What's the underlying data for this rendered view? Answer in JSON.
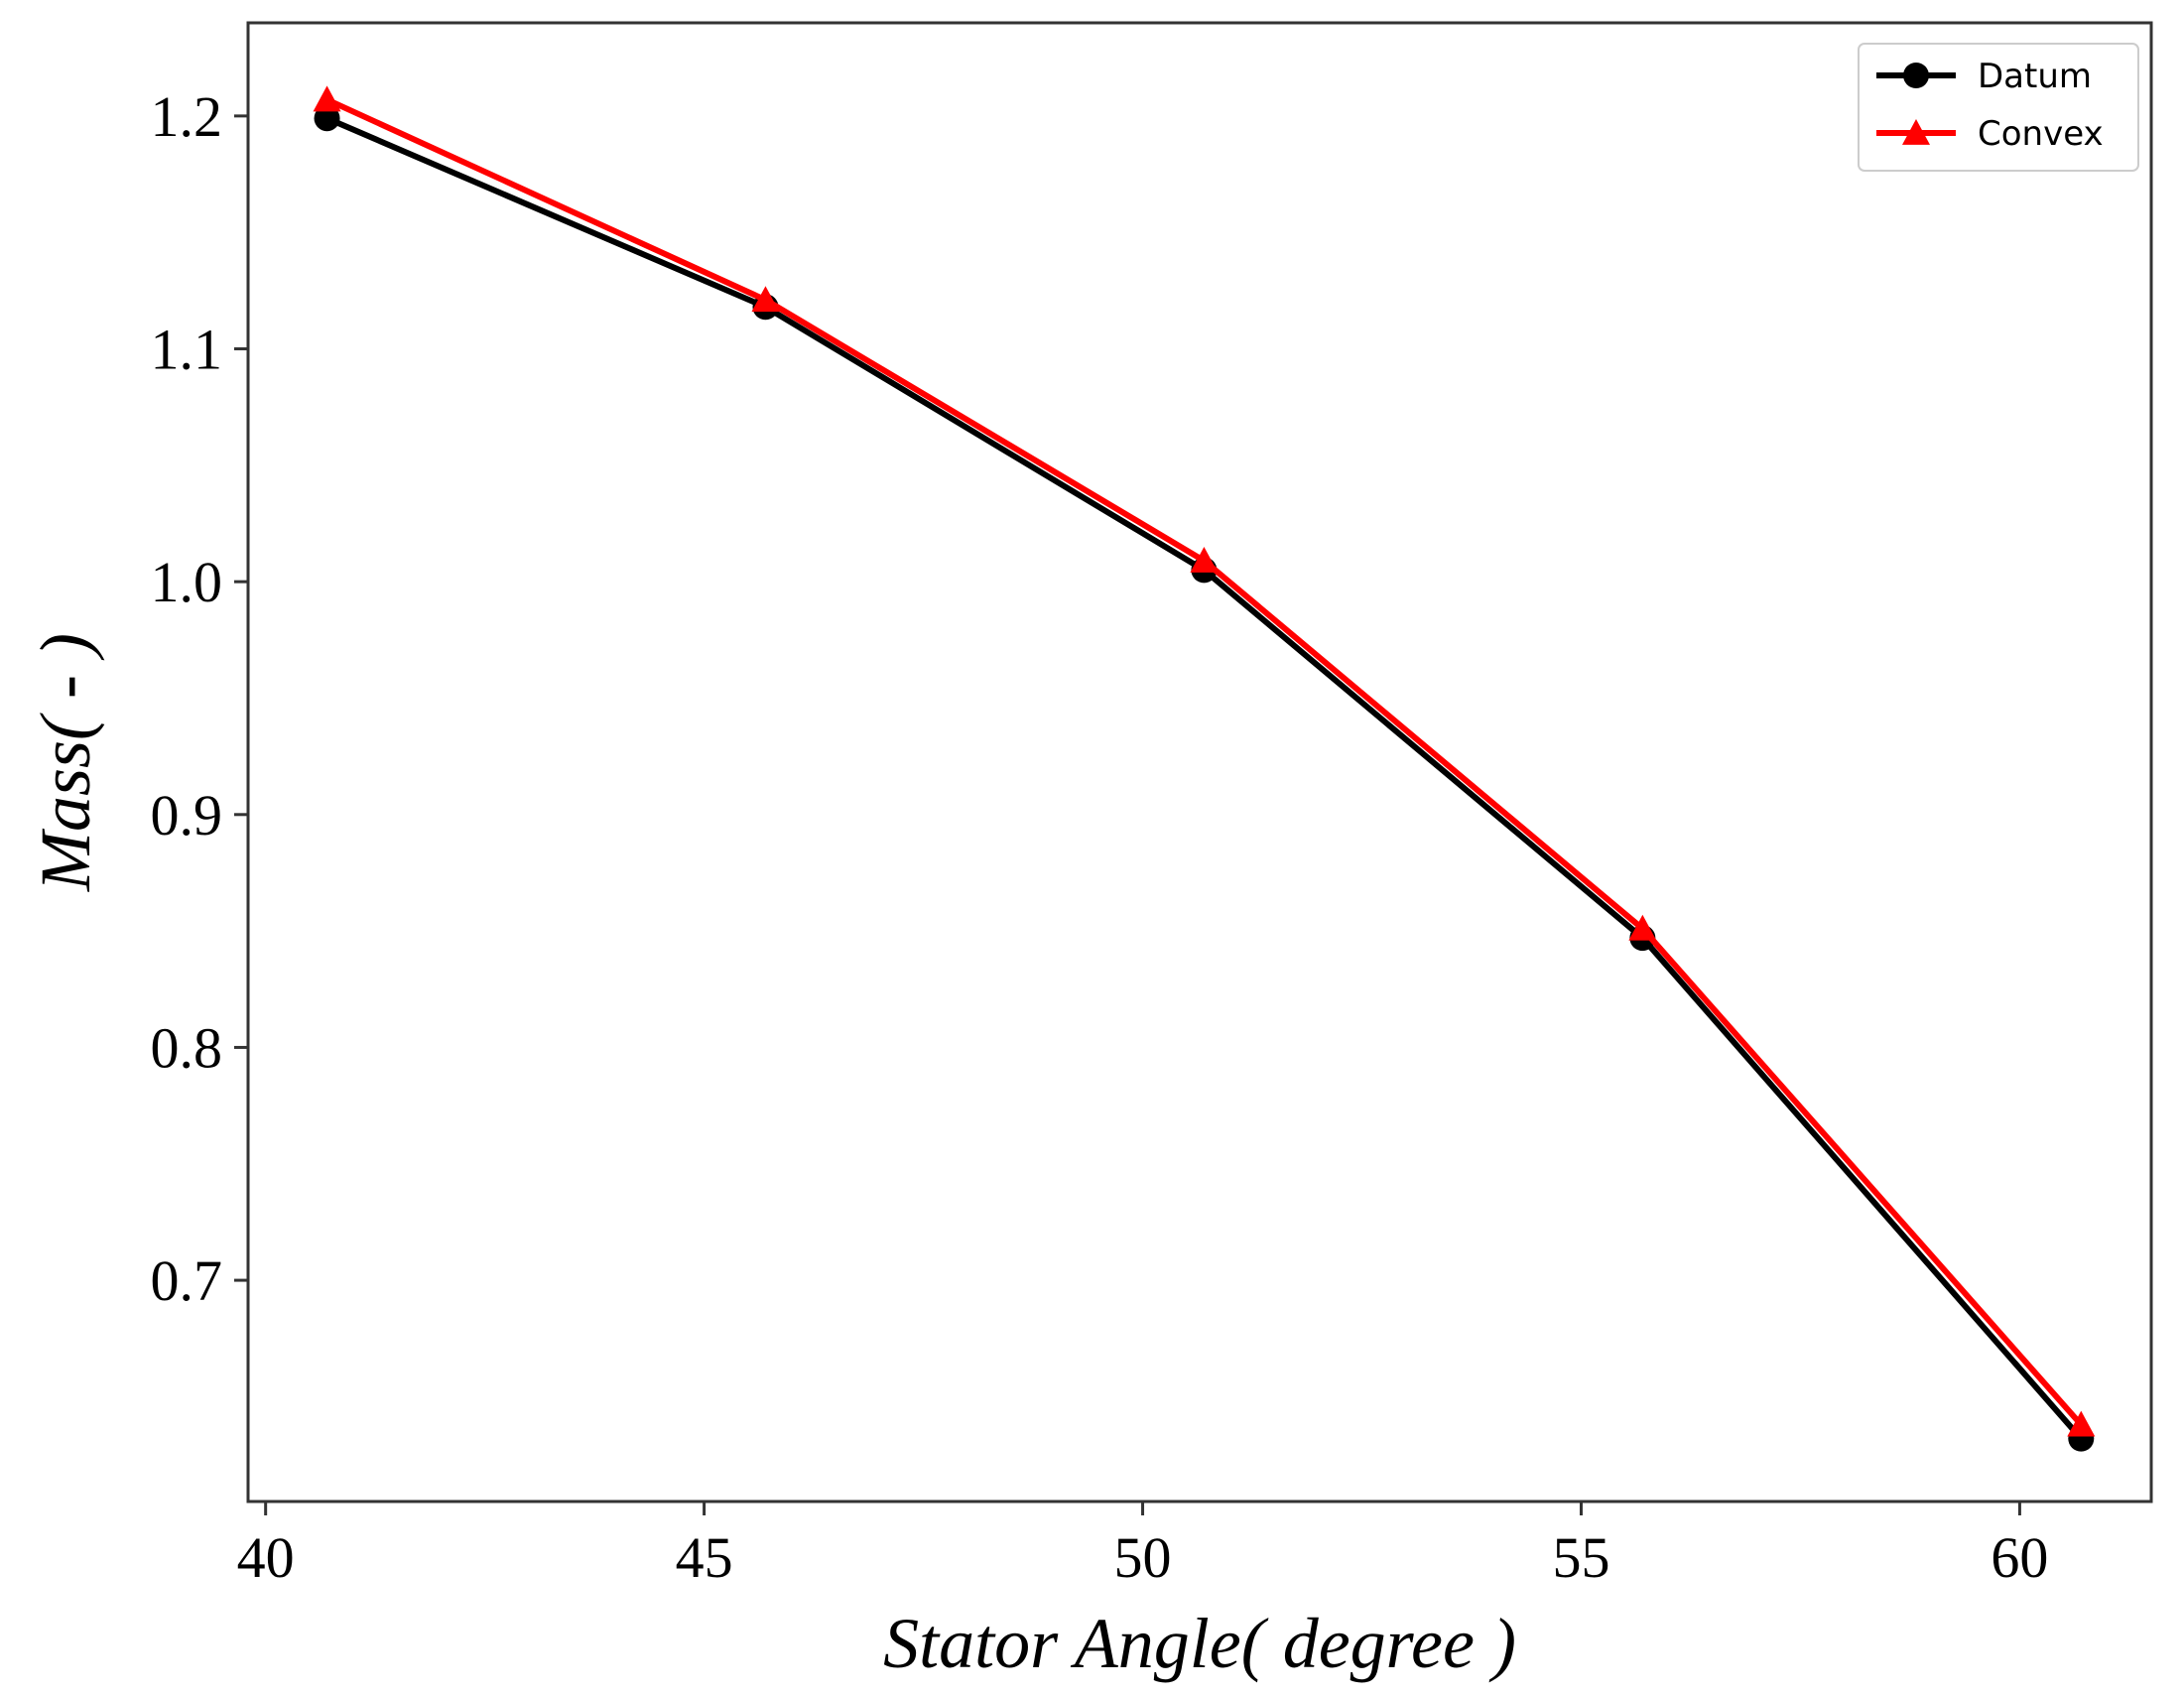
{
  "chart_data": {
    "type": "line",
    "title": "",
    "xlabel": "Stator Angle( degree )",
    "ylabel": "Mass( - )",
    "xlim": [
      39.8,
      61.5
    ],
    "ylim": [
      0.605,
      1.24
    ],
    "xticks": [
      40,
      45,
      50,
      55,
      60
    ],
    "yticks": [
      0.7,
      0.8,
      0.9,
      1.0,
      1.1,
      1.2
    ],
    "ytick_labels": [
      "0.7",
      "0.8",
      "0.9",
      "1.0",
      "1.1",
      "1.2"
    ],
    "grid": false,
    "legend_position": "top-right",
    "x": [
      40.7,
      45.7,
      50.7,
      55.7,
      60.7
    ],
    "series": [
      {
        "name": "Datum",
        "values": [
          1.199,
          1.118,
          1.005,
          0.847,
          0.632
        ],
        "color": "#000000",
        "marker": "circle"
      },
      {
        "name": "Convex",
        "values": [
          1.207,
          1.121,
          1.009,
          0.851,
          0.638
        ],
        "color": "#ff0000",
        "marker": "triangle"
      }
    ]
  }
}
